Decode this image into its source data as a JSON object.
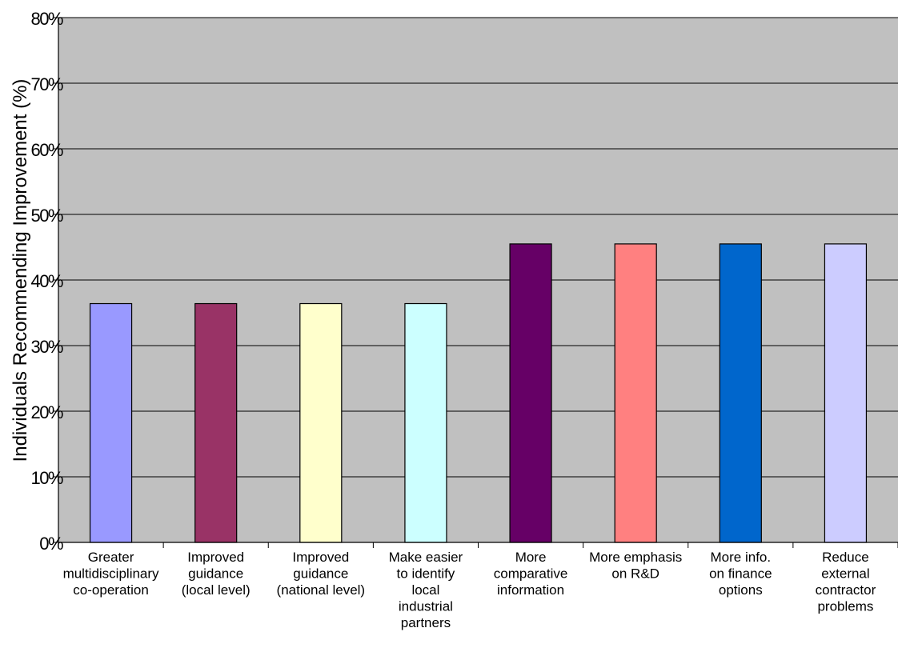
{
  "chart_data": {
    "type": "bar",
    "title": "",
    "xlabel": "",
    "ylabel": "Individuals Recommending Improvement (%)",
    "ylim": [
      0,
      80
    ],
    "yticks": [
      0,
      10,
      20,
      30,
      40,
      50,
      60,
      70,
      80
    ],
    "ytick_labels": [
      "0%",
      "10%",
      "20%",
      "30%",
      "40%",
      "50%",
      "60%",
      "70%",
      "80%"
    ],
    "grid": true,
    "legend": "none",
    "plot_background": "#C0C0C0",
    "categories": [
      [
        "Greater",
        "multidisciplinary",
        "co-operation"
      ],
      [
        "Improved",
        "guidance",
        "(local level)"
      ],
      [
        "Improved",
        "guidance",
        "(national level)"
      ],
      [
        "Make easier",
        "to identify",
        "local",
        "industrial",
        "partners"
      ],
      [
        "More",
        "comparative",
        "information"
      ],
      [
        "More emphasis",
        "on R&D"
      ],
      [
        "More info.",
        "on finance",
        "options"
      ],
      [
        "Reduce",
        "external",
        "contractor",
        "problems"
      ]
    ],
    "values": [
      36.4,
      36.4,
      36.4,
      36.4,
      45.5,
      45.5,
      45.5,
      45.5
    ],
    "colors": [
      "#9999FF",
      "#993366",
      "#FFFFCC",
      "#CCFFFF",
      "#660066",
      "#FF8080",
      "#0066CC",
      "#CCCCFF"
    ]
  }
}
